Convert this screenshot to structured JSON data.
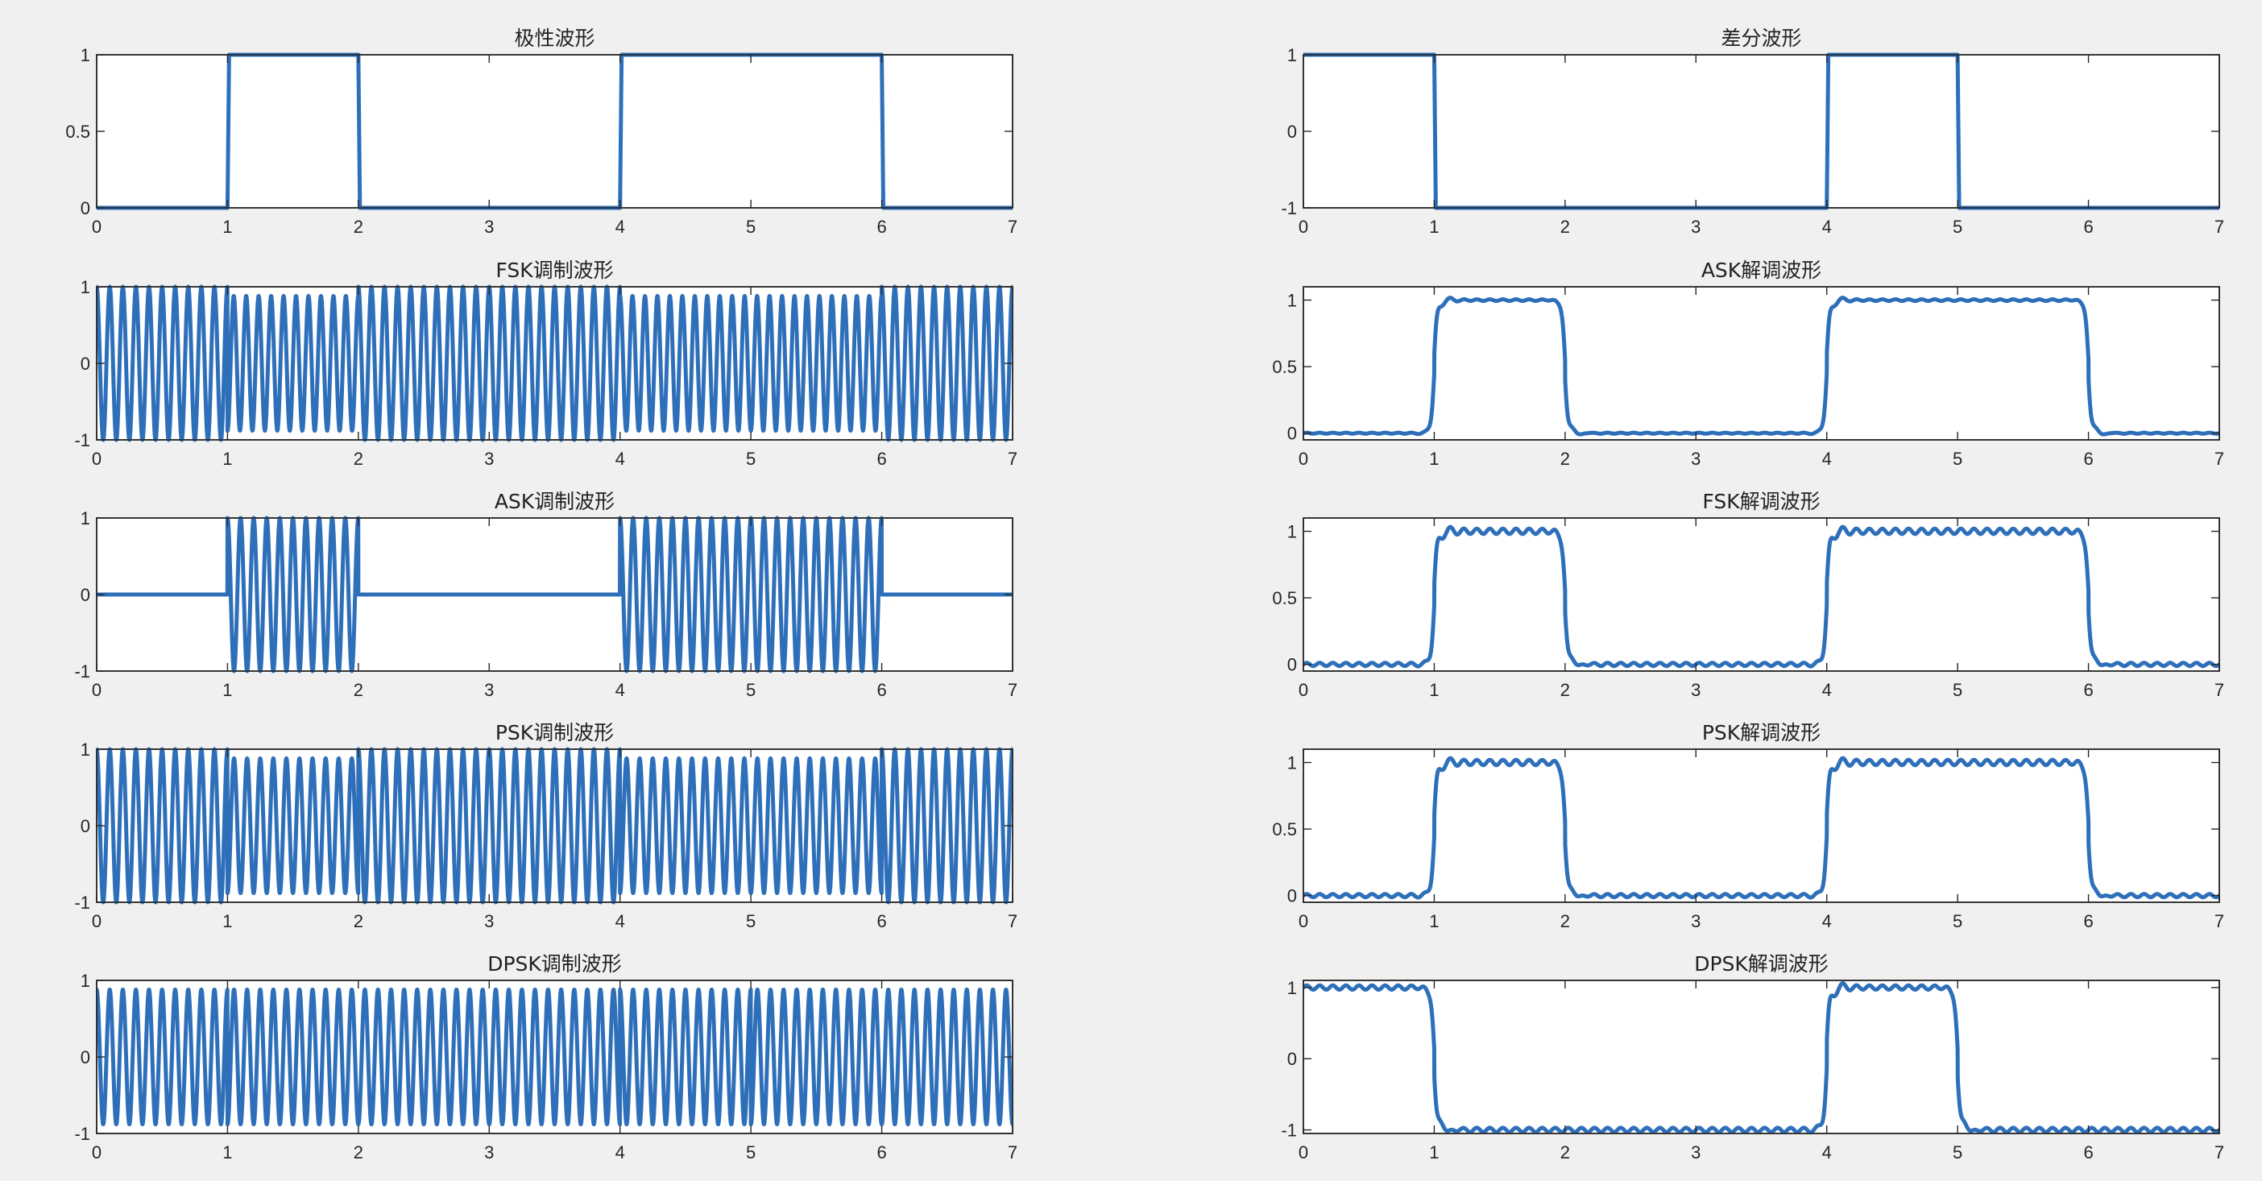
{
  "window": {
    "background": "#f0f0f0"
  },
  "colors": {
    "line": "#2e6fba",
    "axis": "#262626",
    "plot_bg": "#ffffff"
  },
  "chart_data": [
    {
      "id": "polar",
      "type": "line",
      "title": "极性波形",
      "signal": "step",
      "xlim": [
        0,
        7
      ],
      "ylim": [
        0,
        1
      ],
      "xticks": [
        0,
        1,
        2,
        3,
        4,
        5,
        6,
        7
      ],
      "yticks": [
        0,
        0.5,
        1
      ],
      "ytick_labels": [
        "0",
        "0.5",
        "1"
      ],
      "segments": [
        [
          0,
          1,
          0
        ],
        [
          1,
          2,
          1
        ],
        [
          2,
          4,
          0
        ],
        [
          4,
          6,
          1
        ],
        [
          6,
          7,
          0
        ]
      ],
      "grid": false
    },
    {
      "id": "diff",
      "type": "line",
      "title": "差分波形",
      "signal": "step",
      "xlim": [
        0,
        7
      ],
      "ylim": [
        -1,
        1
      ],
      "xticks": [
        0,
        1,
        2,
        3,
        4,
        5,
        6,
        7
      ],
      "yticks": [
        -1,
        0,
        1
      ],
      "ytick_labels": [
        "-1",
        "0",
        "1"
      ],
      "segments": [
        [
          0,
          1,
          1
        ],
        [
          1,
          4,
          -1
        ],
        [
          4,
          5,
          1
        ],
        [
          5,
          7,
          -1
        ]
      ],
      "grid": false
    },
    {
      "id": "fsk",
      "type": "line",
      "title": "FSK调制波形",
      "signal": "fsk",
      "xlim": [
        0,
        7
      ],
      "ylim": [
        -1,
        1
      ],
      "xticks": [
        0,
        1,
        2,
        3,
        4,
        5,
        6,
        7
      ],
      "yticks": [
        -1,
        0,
        1
      ],
      "ytick_labels": [
        "-1",
        "0",
        "1"
      ],
      "bits": [
        0,
        1,
        0,
        0,
        1,
        1,
        0
      ],
      "freq_for_0": 10,
      "freq_for_1": 10.5,
      "amp_for_0": 1,
      "amp_for_1": 0.88,
      "grid": false
    },
    {
      "id": "ask_demod",
      "type": "line",
      "title": "ASK解调波形",
      "signal": "demod",
      "xlim": [
        0,
        7
      ],
      "ylim": [
        -0.05,
        1.1
      ],
      "xticks": [
        0,
        1,
        2,
        3,
        4,
        5,
        6,
        7
      ],
      "yticks": [
        0,
        0.5,
        1
      ],
      "ytick_labels": [
        "0",
        "0.5",
        "1"
      ],
      "segments": [
        [
          0,
          1,
          0
        ],
        [
          1,
          2,
          1
        ],
        [
          2,
          4,
          0
        ],
        [
          4,
          6,
          1
        ],
        [
          6,
          7,
          0
        ]
      ],
      "ripple": 0.006,
      "overshoot": 0.09,
      "grid": false
    },
    {
      "id": "ask",
      "type": "line",
      "title": "ASK调制波形",
      "signal": "ask",
      "xlim": [
        0,
        7
      ],
      "ylim": [
        -1,
        1
      ],
      "xticks": [
        0,
        1,
        2,
        3,
        4,
        5,
        6,
        7
      ],
      "yticks": [
        -1,
        0,
        1
      ],
      "ytick_labels": [
        "-1",
        "0",
        "1"
      ],
      "bits": [
        0,
        1,
        0,
        0,
        1,
        1,
        0
      ],
      "carrier_freq": 10,
      "grid": false
    },
    {
      "id": "fsk_demod",
      "type": "line",
      "title": "FSK解调波形",
      "signal": "demod",
      "xlim": [
        0,
        7
      ],
      "ylim": [
        -0.05,
        1.1
      ],
      "xticks": [
        0,
        1,
        2,
        3,
        4,
        5,
        6,
        7
      ],
      "yticks": [
        0,
        0.5,
        1
      ],
      "ytick_labels": [
        "0",
        "0.5",
        "1"
      ],
      "segments": [
        [
          0,
          1,
          0
        ],
        [
          1,
          2,
          1
        ],
        [
          2,
          4,
          0
        ],
        [
          4,
          6,
          1
        ],
        [
          6,
          7,
          0
        ]
      ],
      "ripple": 0.02,
      "overshoot": 0.1,
      "grid": false
    },
    {
      "id": "psk",
      "type": "line",
      "title": "PSK调制波形",
      "signal": "psk",
      "xlim": [
        0,
        7
      ],
      "ylim": [
        -1,
        1
      ],
      "xticks": [
        0,
        1,
        2,
        3,
        4,
        5,
        6,
        7
      ],
      "yticks": [
        -1,
        0,
        1
      ],
      "ytick_labels": [
        "-1",
        "0",
        "1"
      ],
      "bits": [
        0,
        1,
        0,
        0,
        1,
        1,
        0
      ],
      "carrier_freq": 10,
      "amp_for_0": 1,
      "amp_for_1": 0.88,
      "grid": false
    },
    {
      "id": "psk_demod",
      "type": "line",
      "title": "PSK解调波形",
      "signal": "demod",
      "xlim": [
        0,
        7
      ],
      "ylim": [
        -0.05,
        1.1
      ],
      "xticks": [
        0,
        1,
        2,
        3,
        4,
        5,
        6,
        7
      ],
      "yticks": [
        0,
        0.5,
        1
      ],
      "ytick_labels": [
        "0",
        "0.5",
        "1"
      ],
      "segments": [
        [
          0,
          1,
          0
        ],
        [
          1,
          2,
          1
        ],
        [
          2,
          4,
          0
        ],
        [
          4,
          6,
          1
        ],
        [
          6,
          7,
          0
        ]
      ],
      "ripple": 0.02,
      "overshoot": 0.1,
      "grid": false
    },
    {
      "id": "dpsk",
      "type": "line",
      "title": "DPSK调制波形",
      "signal": "dpsk",
      "xlim": [
        0,
        7
      ],
      "ylim": [
        -1,
        1
      ],
      "xticks": [
        0,
        1,
        2,
        3,
        4,
        5,
        6,
        7
      ],
      "yticks": [
        -1,
        0,
        1
      ],
      "ytick_labels": [
        "-1",
        "0",
        "1"
      ],
      "bits": [
        1,
        -1,
        -1,
        -1,
        1,
        -1,
        -1
      ],
      "carrier_freq": 10,
      "amp": 0.88,
      "grid": false
    },
    {
      "id": "dpsk_demod",
      "type": "line",
      "title": "DPSK解调波形",
      "signal": "demod",
      "xlim": [
        0,
        7
      ],
      "ylim": [
        -1.05,
        1.1
      ],
      "xticks": [
        0,
        1,
        2,
        3,
        4,
        5,
        6,
        7
      ],
      "yticks": [
        -1,
        0,
        1
      ],
      "ytick_labels": [
        "-1",
        "0",
        "1"
      ],
      "segments": [
        [
          0,
          1,
          1
        ],
        [
          1,
          4,
          -1
        ],
        [
          4,
          5,
          1
        ],
        [
          5,
          7,
          -1
        ]
      ],
      "ripple": 0.03,
      "overshoot": 0.12,
      "grid": false
    }
  ]
}
